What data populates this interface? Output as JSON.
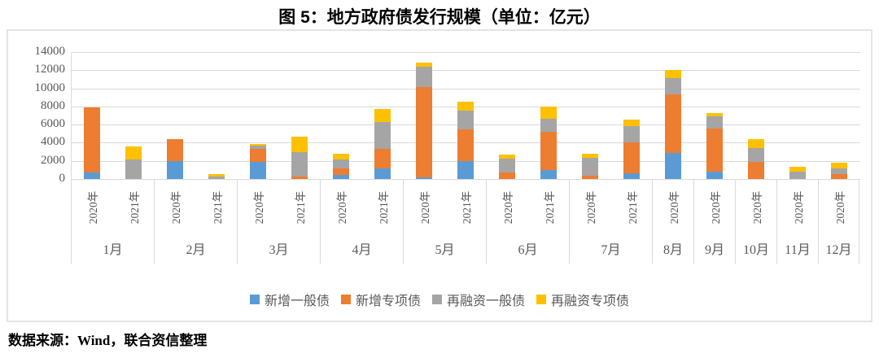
{
  "figure": {
    "title": "图 5：地方政府债发行规模（单位：亿元）",
    "source_note": "数据来源：Wind，联合资信整理"
  },
  "colors": {
    "series_blue": "#5B9BD5",
    "series_orange": "#ED7D31",
    "series_gray": "#A5A5A5",
    "series_yellow": "#FFC000",
    "gridline": "#D9D9D9",
    "axis_text": "#595959",
    "chart_border": "#E4E4E4",
    "title_text": "#000000"
  },
  "chart_data": {
    "type": "bar",
    "stacked": true,
    "unit": "亿元",
    "title": "图 5：地方政府债发行规模（单位：亿元）",
    "ylim": [
      0,
      14000
    ],
    "ytick_step": 2000,
    "yticks": [
      0,
      2000,
      4000,
      6000,
      8000,
      10000,
      12000,
      14000
    ],
    "grid": true,
    "legend_position": "bottom-center",
    "series": [
      {
        "name": "新增一般债",
        "color": "#5B9BD5"
      },
      {
        "name": "新增专项债",
        "color": "#ED7D31"
      },
      {
        "name": "再融资一般债",
        "color": "#A5A5A5"
      },
      {
        "name": "再融资专项债",
        "color": "#FFC000"
      }
    ],
    "groups": [
      {
        "month": "1月",
        "bars": [
          {
            "year": "2020年",
            "values": [
              700,
              7200,
              0,
              0
            ]
          },
          {
            "year": "2021年",
            "values": [
              0,
              0,
              2150,
              1450
            ]
          }
        ]
      },
      {
        "month": "2月",
        "bars": [
          {
            "year": "2020年",
            "values": [
              2000,
              2400,
              0,
              0
            ]
          },
          {
            "year": "2021年",
            "values": [
              0,
              0,
              300,
              250
            ]
          }
        ]
      },
      {
        "month": "3月",
        "bars": [
          {
            "year": "2020年",
            "values": [
              1850,
              1450,
              400,
              150
            ]
          },
          {
            "year": "2021年",
            "values": [
              0,
              300,
              2700,
              1650
            ]
          }
        ]
      },
      {
        "month": "4月",
        "bars": [
          {
            "year": "2020年",
            "values": [
              450,
              700,
              1050,
              550
            ]
          },
          {
            "year": "2021年",
            "values": [
              1150,
              2150,
              3000,
              1400
            ]
          }
        ]
      },
      {
        "month": "5月",
        "bars": [
          {
            "year": "2020年",
            "values": [
              200,
              9900,
              2300,
              450
            ]
          },
          {
            "year": "2021年",
            "values": [
              2000,
              3450,
              2050,
              1000
            ]
          }
        ]
      },
      {
        "month": "6月",
        "bars": [
          {
            "year": "2020年",
            "values": [
              0,
              700,
              1550,
              450
            ]
          },
          {
            "year": "2021年",
            "values": [
              1000,
              4250,
              1400,
              1300
            ]
          }
        ]
      },
      {
        "month": "7月",
        "bars": [
          {
            "year": "2020年",
            "values": [
              0,
              350,
              1950,
              450
            ]
          },
          {
            "year": "2021年",
            "values": [
              650,
              3350,
              1850,
              700
            ]
          }
        ]
      },
      {
        "month": "8月",
        "bars": [
          {
            "year": "2020年",
            "values": [
              2900,
              6400,
              1800,
              950
            ]
          }
        ]
      },
      {
        "month": "9月",
        "bars": [
          {
            "year": "2020年",
            "values": [
              800,
              4800,
              1300,
              350
            ]
          }
        ]
      },
      {
        "month": "10月",
        "bars": [
          {
            "year": "2020年",
            "values": [
              0,
              1900,
              1500,
              1000
            ]
          }
        ]
      },
      {
        "month": "11月",
        "bars": [
          {
            "year": "2020年",
            "values": [
              0,
              0,
              800,
              550
            ]
          }
        ]
      },
      {
        "month": "12月",
        "bars": [
          {
            "year": "2020年",
            "values": [
              0,
              500,
              700,
              600
            ]
          }
        ]
      }
    ]
  }
}
